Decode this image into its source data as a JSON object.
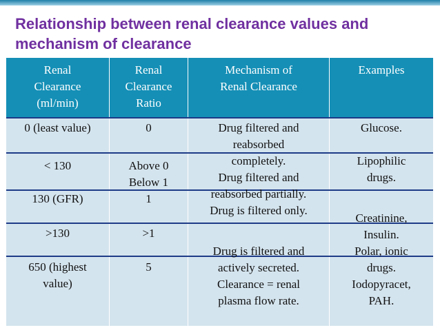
{
  "title": "Relationship between renal clearance values  and mechanism of clearance",
  "headers": [
    "Renal\nClearance\n(ml/min)",
    "Renal\nClearance\nRatio",
    "Mechanism of\nRenal Clearance",
    "Examples"
  ],
  "col1": [
    "0 (least value)",
    "< 130",
    "130 (GFR)",
    ">130",
    "650 (highest\nvalue)"
  ],
  "col2": [
    "0",
    "Above 0\nBelow 1",
    "1",
    ">1",
    "5"
  ],
  "col3": [
    "Drug filtered and\nreabsorbed\ncompletely.",
    "Drug filtered and\nreabsorbed partially.",
    "Drug is filtered only.",
    "Drug is filtered and\nactively secreted.\nClearance = renal\nplasma flow rate."
  ],
  "col4": [
    "Glucose.",
    "Lipophilic\ndrugs.",
    "Creatinine,\nInsulin.",
    "Polar, ionic\ndrugs.\nIodopyracet,\nPAH."
  ]
}
